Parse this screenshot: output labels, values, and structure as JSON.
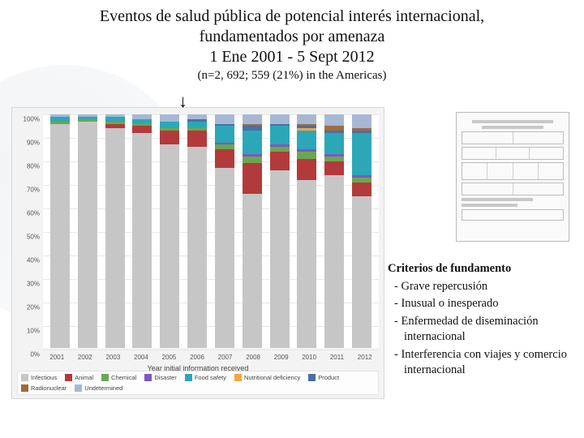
{
  "title": {
    "line1": "Eventos de salud pública de potencial interés internacional,",
    "line2": "fundamentados por amenaza",
    "line3": "1 Ene 2001 - 5 Sept 2012",
    "fontsize": 20
  },
  "subtitle": {
    "text": "(n=2, 692; 559 (21%) in the Americas)",
    "fontsize": 15
  },
  "arrow_glyph": "↓",
  "chart": {
    "type": "stacked-bar-100pct",
    "background_color": "#f3f3f3",
    "plot_background": "#ffffff",
    "grid_color": "#e8e8e8",
    "border_color": "#d7d7d7",
    "label_fontsize": 8,
    "ylim": [
      0,
      100
    ],
    "ytick_step": 10,
    "yticks": [
      0,
      10,
      20,
      30,
      40,
      50,
      60,
      70,
      80,
      90,
      100
    ],
    "ytick_labels": [
      "0%",
      "10%",
      "20%",
      "30%",
      "40%",
      "50%",
      "60%",
      "70%",
      "80%",
      "90%",
      "100%"
    ],
    "x_axis_title": "Year initial information received",
    "categories": [
      "2001",
      "2002",
      "2003",
      "2004",
      "2005",
      "2006",
      "2007",
      "2008",
      "2009",
      "2010",
      "2011",
      "2012"
    ],
    "series": [
      {
        "key": "infectious",
        "label": "Infectious",
        "color": "#c6c6c6"
      },
      {
        "key": "animal",
        "label": "Animal",
        "color": "#b33a3a"
      },
      {
        "key": "chemical",
        "label": "Chemical",
        "color": "#6aa84f"
      },
      {
        "key": "disaster",
        "label": "Disaster",
        "color": "#7e57c2"
      },
      {
        "key": "food_safety",
        "label": "Food safety",
        "color": "#2ca7b8"
      },
      {
        "key": "nutritional",
        "label": "Nutritional deficiency",
        "color": "#f4a742"
      },
      {
        "key": "product",
        "label": "Product",
        "color": "#4a6fa5"
      },
      {
        "key": "radionuclear",
        "label": "Radionuclear",
        "color": "#a26b3c"
      },
      {
        "key": "undetermined",
        "label": "Undetermined",
        "color": "#a7b8d4"
      }
    ],
    "bar_width_ratio": 0.55,
    "data": [
      {
        "infectious": 96,
        "animal": 0,
        "chemical": 1,
        "disaster": 0,
        "food_safety": 2,
        "nutritional": 0,
        "product": 0,
        "radionuclear": 0,
        "undetermined": 1
      },
      {
        "infectious": 97,
        "animal": 0,
        "chemical": 1,
        "disaster": 0,
        "food_safety": 1,
        "nutritional": 0,
        "product": 0,
        "radionuclear": 0,
        "undetermined": 1
      },
      {
        "infectious": 94,
        "animal": 2,
        "chemical": 1,
        "disaster": 0,
        "food_safety": 2,
        "nutritional": 0,
        "product": 0,
        "radionuclear": 0,
        "undetermined": 1
      },
      {
        "infectious": 92,
        "animal": 3,
        "chemical": 1,
        "disaster": 0,
        "food_safety": 2,
        "nutritional": 0,
        "product": 0,
        "radionuclear": 0,
        "undetermined": 2
      },
      {
        "infectious": 87,
        "animal": 6,
        "chemical": 1,
        "disaster": 0,
        "food_safety": 3,
        "nutritional": 0,
        "product": 0,
        "radionuclear": 0,
        "undetermined": 3
      },
      {
        "infectious": 86,
        "animal": 7,
        "chemical": 1,
        "disaster": 0,
        "food_safety": 3,
        "nutritional": 0,
        "product": 1,
        "radionuclear": 0,
        "undetermined": 2
      },
      {
        "infectious": 77,
        "animal": 8,
        "chemical": 2,
        "disaster": 1,
        "food_safety": 7,
        "nutritional": 0,
        "product": 1,
        "radionuclear": 0,
        "undetermined": 4
      },
      {
        "infectious": 66,
        "animal": 13,
        "chemical": 3,
        "disaster": 1,
        "food_safety": 10,
        "nutritional": 0,
        "product": 2,
        "radionuclear": 1,
        "undetermined": 4
      },
      {
        "infectious": 76,
        "animal": 8,
        "chemical": 2,
        "disaster": 1,
        "food_safety": 8,
        "nutritional": 0,
        "product": 1,
        "radionuclear": 0,
        "undetermined": 4
      },
      {
        "infectious": 72,
        "animal": 9,
        "chemical": 3,
        "disaster": 1,
        "food_safety": 8,
        "nutritional": 1,
        "product": 1,
        "radionuclear": 1,
        "undetermined": 4
      },
      {
        "infectious": 74,
        "animal": 6,
        "chemical": 2,
        "disaster": 1,
        "food_safety": 9,
        "nutritional": 0,
        "product": 1,
        "radionuclear": 2,
        "undetermined": 5
      },
      {
        "infectious": 65,
        "animal": 6,
        "chemical": 2,
        "disaster": 1,
        "food_safety": 18,
        "nutritional": 0,
        "product": 1,
        "radionuclear": 1,
        "undetermined": 6
      }
    ]
  },
  "criteria": {
    "heading": "Criterios de fundamento",
    "items": [
      "Grave repercusión",
      "Inusual o inesperado",
      "Enfermedad de diseminación internacional",
      "Interferencia con viajes y comercio internacional"
    ],
    "fontsize": 14.5
  },
  "doc_thumb": {
    "alt": "IHR Annex 2 decision instrument (thumbnail)"
  }
}
